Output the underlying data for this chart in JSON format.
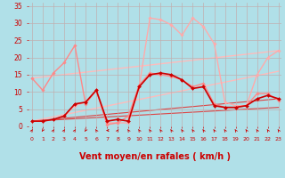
{
  "background_color": "#b0e0e8",
  "grid_color": "#c0b0b0",
  "xlabel": "Vent moyen/en rafales ( km/h )",
  "xlabel_color": "#cc0000",
  "xlabel_fontsize": 7,
  "tick_color": "#cc0000",
  "ytick_labels": [
    "0",
    "5",
    "10",
    "15",
    "20",
    "25",
    "30",
    "35"
  ],
  "ytick_vals": [
    0,
    5,
    10,
    15,
    20,
    25,
    30,
    35
  ],
  "xtick_vals": [
    0,
    1,
    2,
    3,
    4,
    5,
    6,
    7,
    8,
    9,
    10,
    11,
    12,
    13,
    14,
    15,
    16,
    17,
    18,
    19,
    20,
    21,
    22,
    23
  ],
  "xlim": [
    -0.3,
    23.3
  ],
  "ylim": [
    0,
    36
  ],
  "series": [
    {
      "x": [
        0,
        1,
        2,
        3,
        4,
        5,
        6,
        7,
        8,
        9,
        10,
        11,
        12,
        13,
        14,
        15,
        16,
        17,
        18,
        19,
        20,
        21,
        22,
        23
      ],
      "y": [
        1.5,
        1.5,
        2,
        3,
        6,
        7,
        10.5,
        1,
        1,
        1,
        11.5,
        31.5,
        31,
        29.5,
        26.5,
        31.5,
        29,
        24,
        7,
        6,
        6,
        15,
        20,
        22
      ],
      "color": "#ffaaaa",
      "lw": 1.0,
      "marker": "D",
      "ms": 1.8,
      "zorder": 2
    },
    {
      "x": [
        0,
        1,
        2,
        3,
        4,
        5,
        6,
        7,
        8,
        9,
        10,
        11,
        12,
        13,
        14,
        15,
        16,
        17,
        18,
        19,
        20,
        21,
        22,
        23
      ],
      "y": [
        14,
        10.5,
        15.5,
        18.5,
        23.5,
        6.5,
        10.5,
        0.5,
        1,
        3,
        12,
        15.5,
        15,
        14.5,
        13.5,
        11.5,
        12.5,
        6.5,
        5.5,
        5.5,
        6,
        9.5,
        9.5,
        7.5
      ],
      "color": "#ff8888",
      "lw": 1.0,
      "marker": "D",
      "ms": 1.8,
      "zorder": 3
    },
    {
      "x": [
        0,
        1,
        2,
        3,
        4,
        5,
        6,
        7,
        8,
        9,
        10,
        11,
        12,
        13,
        14,
        15,
        16,
        17,
        18,
        19,
        20,
        21,
        22,
        23
      ],
      "y": [
        1.5,
        1.5,
        2,
        3,
        6.5,
        7,
        10.5,
        1.5,
        2,
        1.5,
        11.5,
        15,
        15.5,
        15,
        13.5,
        11,
        11.5,
        6,
        5.5,
        5.5,
        6,
        8,
        9,
        8
      ],
      "color": "#cc0000",
      "lw": 1.2,
      "marker": "D",
      "ms": 2.0,
      "zorder": 4
    },
    {
      "x": [
        0,
        23
      ],
      "y": [
        14,
        22
      ],
      "color": "#ffbbbb",
      "lw": 1.0,
      "marker": null,
      "ms": 0,
      "zorder": 1
    },
    {
      "x": [
        0,
        23
      ],
      "y": [
        1.5,
        16
      ],
      "color": "#ffbbbb",
      "lw": 1.0,
      "marker": null,
      "ms": 0,
      "zorder": 1
    },
    {
      "x": [
        0,
        23
      ],
      "y": [
        1.5,
        8
      ],
      "color": "#dd4444",
      "lw": 0.8,
      "marker": null,
      "ms": 0,
      "zorder": 1
    },
    {
      "x": [
        0,
        23
      ],
      "y": [
        1.5,
        5.5
      ],
      "color": "#dd4444",
      "lw": 0.8,
      "marker": null,
      "ms": 0,
      "zorder": 1
    }
  ],
  "arrow_color": "#cc0000",
  "arrow_directions": [
    45,
    225,
    45,
    45,
    45,
    225,
    315,
    270,
    45,
    315,
    315,
    315,
    315,
    315,
    315,
    315,
    315,
    315,
    315,
    315,
    315,
    315,
    315,
    315
  ]
}
